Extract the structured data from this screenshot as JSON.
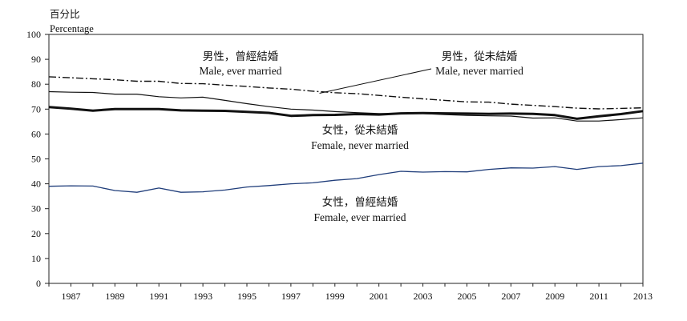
{
  "chart_data": {
    "type": "line",
    "ylabel_zh": "百分比",
    "ylabel_en": "Percentage",
    "ylim": [
      0,
      100
    ],
    "yticks": [
      0,
      10,
      20,
      30,
      40,
      50,
      60,
      70,
      80,
      90,
      100
    ],
    "xlim": [
      1986,
      2013
    ],
    "xticks": [
      1987,
      1989,
      1991,
      1993,
      1995,
      1997,
      1999,
      2001,
      2003,
      2005,
      2007,
      2009,
      2011,
      2013
    ],
    "grid": false,
    "x": [
      1986,
      1987,
      1988,
      1989,
      1990,
      1991,
      1992,
      1993,
      1994,
      1995,
      1996,
      1997,
      1998,
      1999,
      2000,
      2001,
      2002,
      2003,
      2004,
      2005,
      2006,
      2007,
      2008,
      2009,
      2010,
      2011,
      2012,
      2013
    ],
    "series": [
      {
        "label_zh": "男性，從未結婚",
        "label_en": "Male, never married",
        "color": "#111111",
        "style": "dashdot",
        "width": 1.4,
        "values": [
          83.0,
          82.6,
          82.2,
          81.8,
          81.2,
          81.2,
          80.3,
          80.2,
          79.6,
          79.1,
          78.5,
          78.0,
          77.2,
          76.6,
          76.2,
          75.5,
          74.8,
          74.1,
          73.5,
          72.9,
          72.8,
          72.0,
          71.5,
          71.0,
          70.4,
          70.1,
          70.3,
          70.5
        ]
      },
      {
        "label_zh": "男性，曾經結婚",
        "label_en": "Male, ever married",
        "color": "#111111",
        "style": "solid",
        "width": 1.2,
        "values": [
          77.0,
          76.8,
          76.7,
          76.0,
          76.0,
          75.0,
          74.5,
          74.8,
          73.5,
          72.2,
          71.0,
          70.0,
          69.6,
          69.0,
          68.6,
          68.2,
          68.2,
          68.2,
          67.8,
          67.5,
          67.3,
          67.2,
          66.4,
          66.5,
          65.2,
          65.2,
          65.8,
          66.5
        ]
      },
      {
        "label_zh": "女性，從未結婚",
        "label_en": "Female, never married",
        "color": "#111111",
        "style": "solid",
        "width": 3.0,
        "values": [
          70.8,
          70.2,
          69.4,
          70.0,
          70.0,
          70.0,
          69.5,
          69.4,
          69.3,
          68.9,
          68.5,
          67.3,
          67.6,
          67.7,
          68.0,
          67.8,
          68.3,
          68.4,
          68.3,
          68.2,
          68.1,
          68.2,
          68.1,
          67.6,
          66.1,
          67.1,
          68.0,
          69.2
        ]
      },
      {
        "label_zh": "女性，曾經結婚",
        "label_en": "Female, ever married",
        "color": "#1f3d7a",
        "style": "solid",
        "width": 1.3,
        "values": [
          39.0,
          39.2,
          39.1,
          37.3,
          36.6,
          38.3,
          36.6,
          36.8,
          37.5,
          38.7,
          39.3,
          40.0,
          40.4,
          41.4,
          42.1,
          43.7,
          45.0,
          44.7,
          44.9,
          44.8,
          45.8,
          46.4,
          46.3,
          46.9,
          45.8,
          46.9,
          47.3,
          48.3
        ]
      }
    ],
    "annotations": [
      {
        "series": 1,
        "zh": "男性，曾經結婚",
        "en": "Male, ever married"
      },
      {
        "series": 0,
        "zh": "男性，從未結婚",
        "en": "Male, never married",
        "pointer_year": 1998.3
      },
      {
        "series": 2,
        "zh": "女性，從未結婚",
        "en": "Female, never married"
      },
      {
        "series": 3,
        "zh": "女性，曾經結婚",
        "en": "Female, ever married"
      }
    ]
  }
}
